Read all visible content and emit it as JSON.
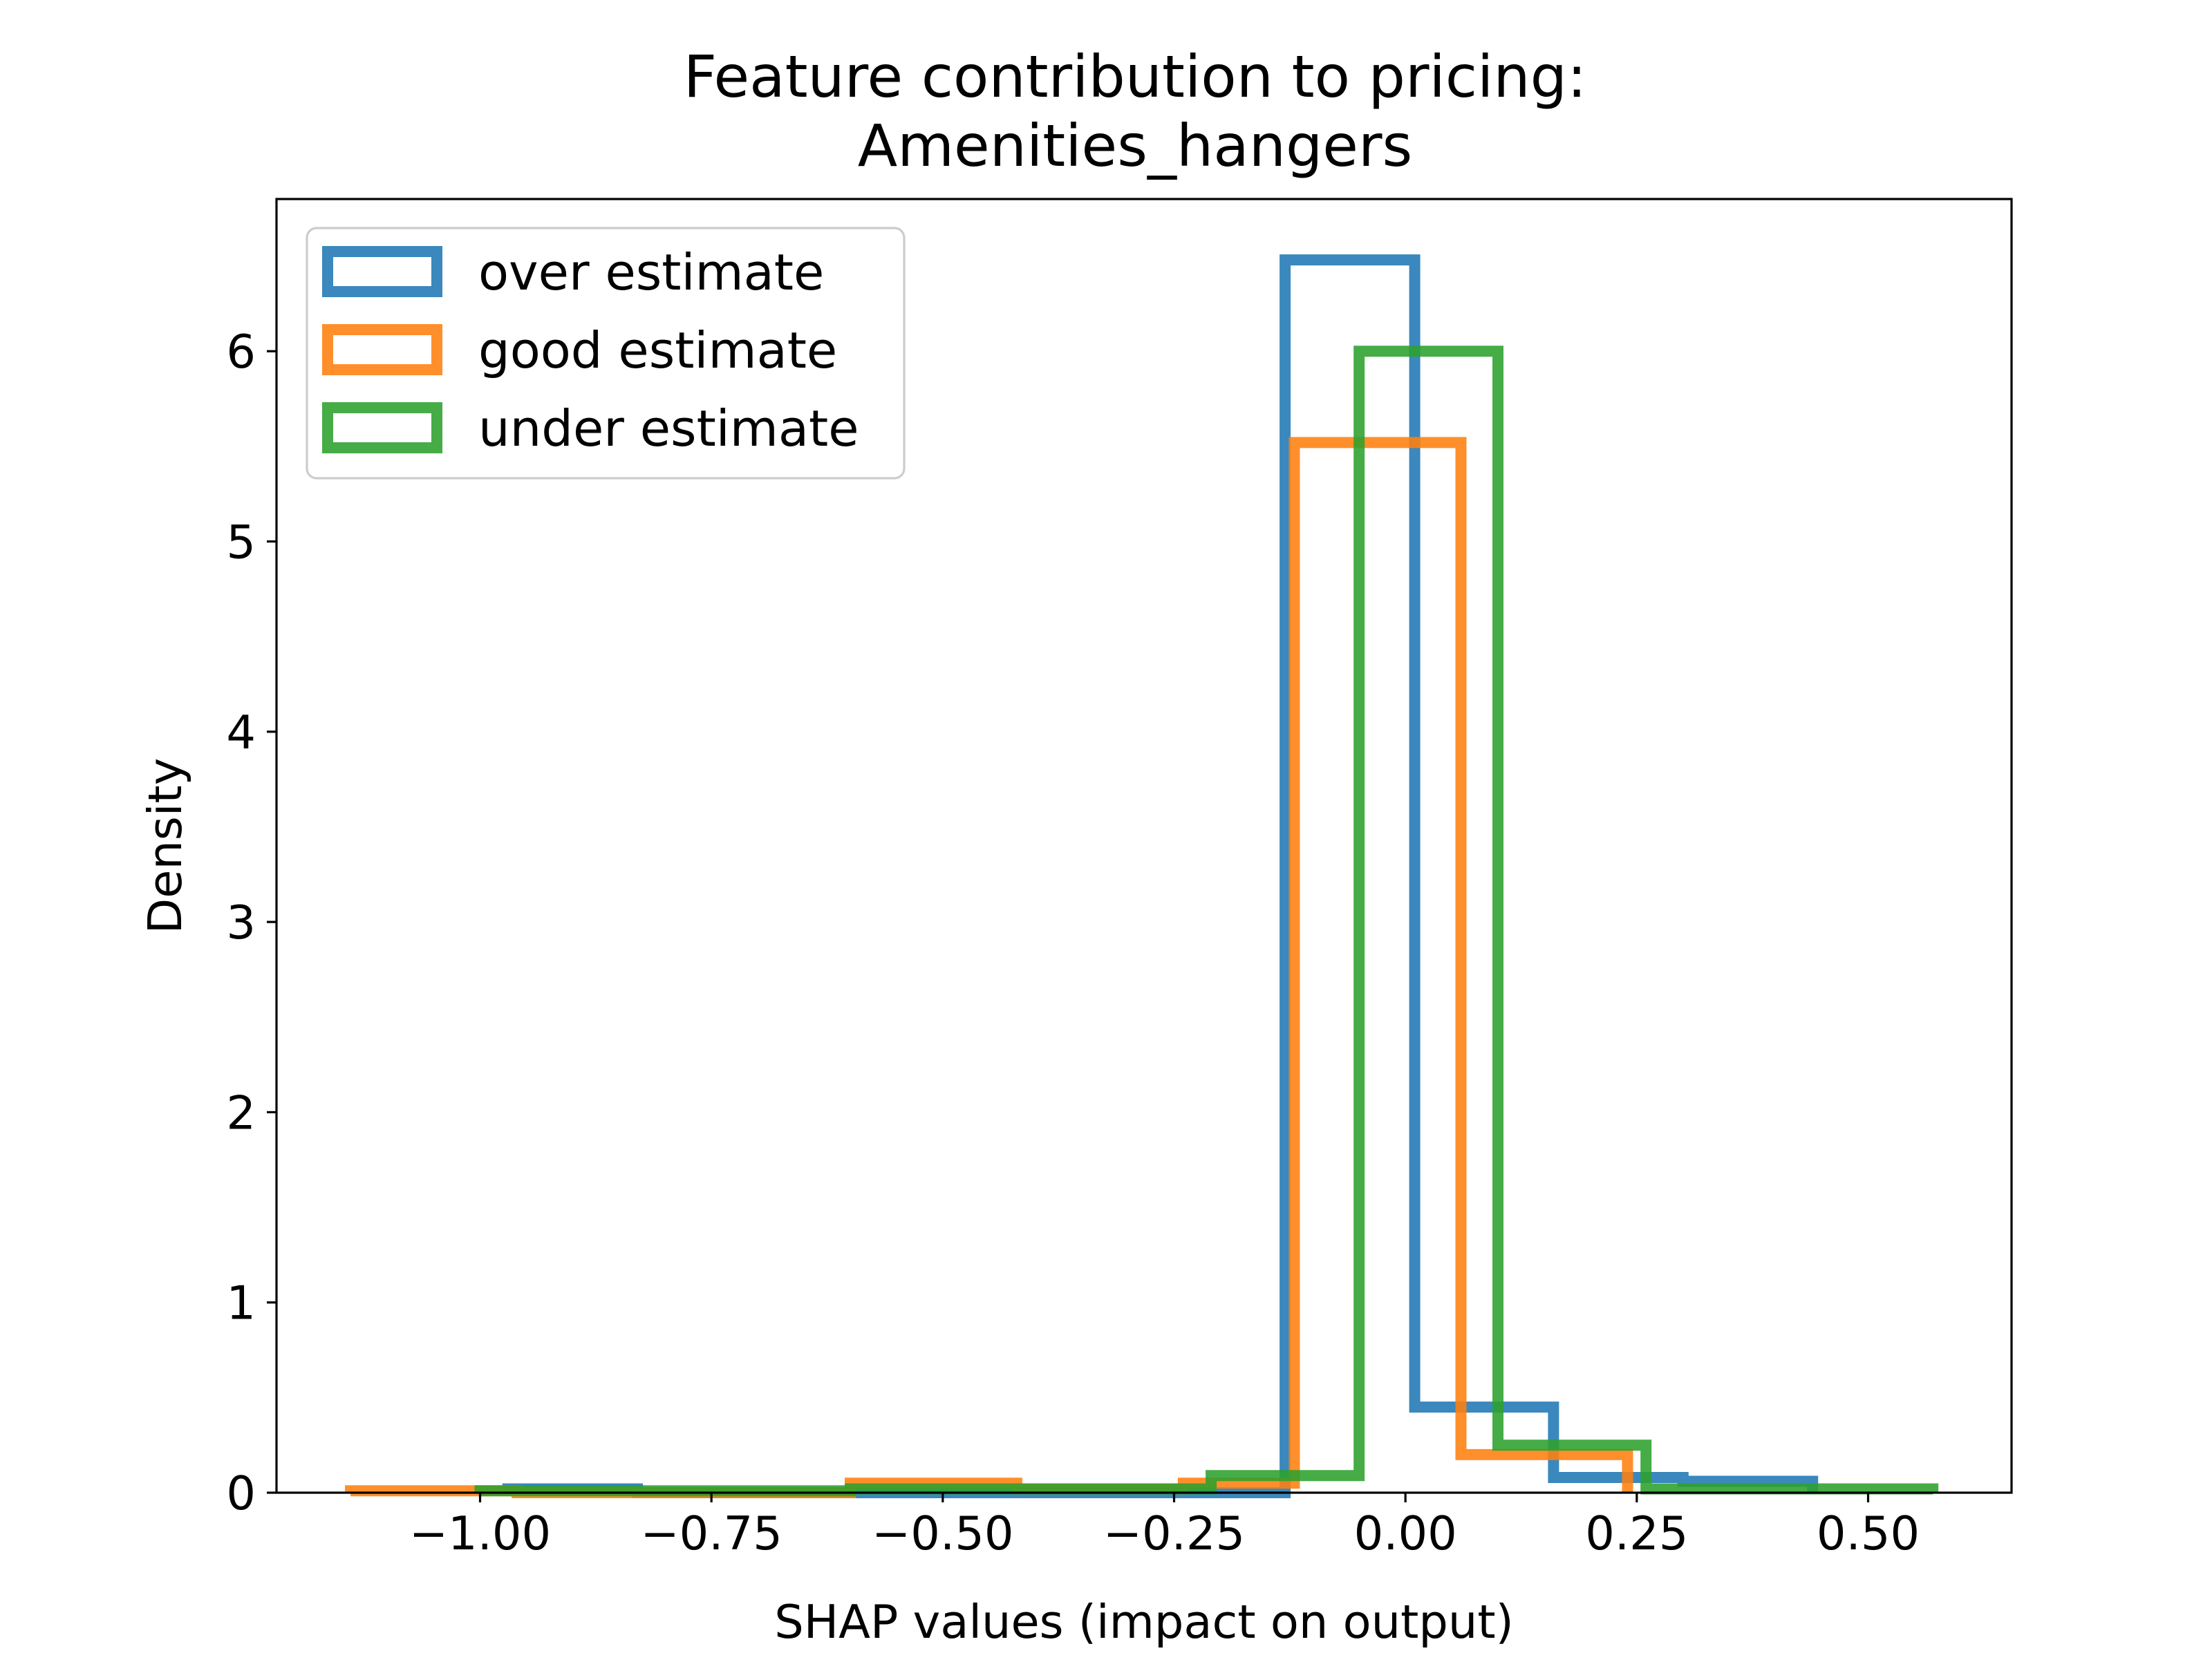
{
  "chart_data": {
    "type": "histogram",
    "title_lines": [
      "Feature contribution to pricing:",
      "Amenities_hangers"
    ],
    "xlabel": "SHAP values (impact on output)",
    "ylabel": "Density",
    "xlim": [
      -1.22,
      0.655
    ],
    "ylim": [
      0,
      6.8
    ],
    "x_ticks": [
      {
        "value": -1.0,
        "label": "−1.00"
      },
      {
        "value": -0.75,
        "label": "−0.75"
      },
      {
        "value": -0.5,
        "label": "−0.50"
      },
      {
        "value": -0.25,
        "label": "−0.25"
      },
      {
        "value": 0.0,
        "label": "0.00"
      },
      {
        "value": 0.25,
        "label": "0.25"
      },
      {
        "value": 0.5,
        "label": "0.50"
      }
    ],
    "y_ticks": [
      {
        "value": 0,
        "label": "0"
      },
      {
        "value": 1,
        "label": "1"
      },
      {
        "value": 2,
        "label": "2"
      },
      {
        "value": 3,
        "label": "3"
      },
      {
        "value": 4,
        "label": "4"
      },
      {
        "value": 5,
        "label": "5"
      },
      {
        "value": 6,
        "label": "6"
      }
    ],
    "grid": false,
    "legend_position": "upper-left",
    "series": [
      {
        "name": "over estimate",
        "color": "#1f77b4",
        "bin_edges": [
          -0.97,
          -0.83,
          -0.69,
          -0.55,
          -0.41,
          -0.27,
          -0.13,
          0.01,
          0.16,
          0.3,
          0.44
        ],
        "densities": [
          0.02,
          0.0,
          0.0,
          0.0,
          0.0,
          0.0,
          6.48,
          0.45,
          0.08,
          0.06
        ]
      },
      {
        "name": "good estimate",
        "color": "#ff7f0e",
        "bin_edges": [
          -1.14,
          -0.96,
          -0.78,
          -0.6,
          -0.42,
          -0.24,
          -0.12,
          0.06,
          0.24
        ],
        "densities": [
          0.01,
          0.0,
          0.0,
          0.05,
          0.02,
          0.05,
          5.52,
          0.2
        ]
      },
      {
        "name": "under estimate",
        "color": "#2ca02c",
        "bin_edges": [
          -1.0,
          -0.8,
          -0.6,
          -0.4,
          -0.21,
          -0.05,
          0.1,
          0.26,
          0.57
        ],
        "densities": [
          0.01,
          0.01,
          0.02,
          0.02,
          0.09,
          6.0,
          0.25,
          0.02
        ]
      }
    ]
  }
}
